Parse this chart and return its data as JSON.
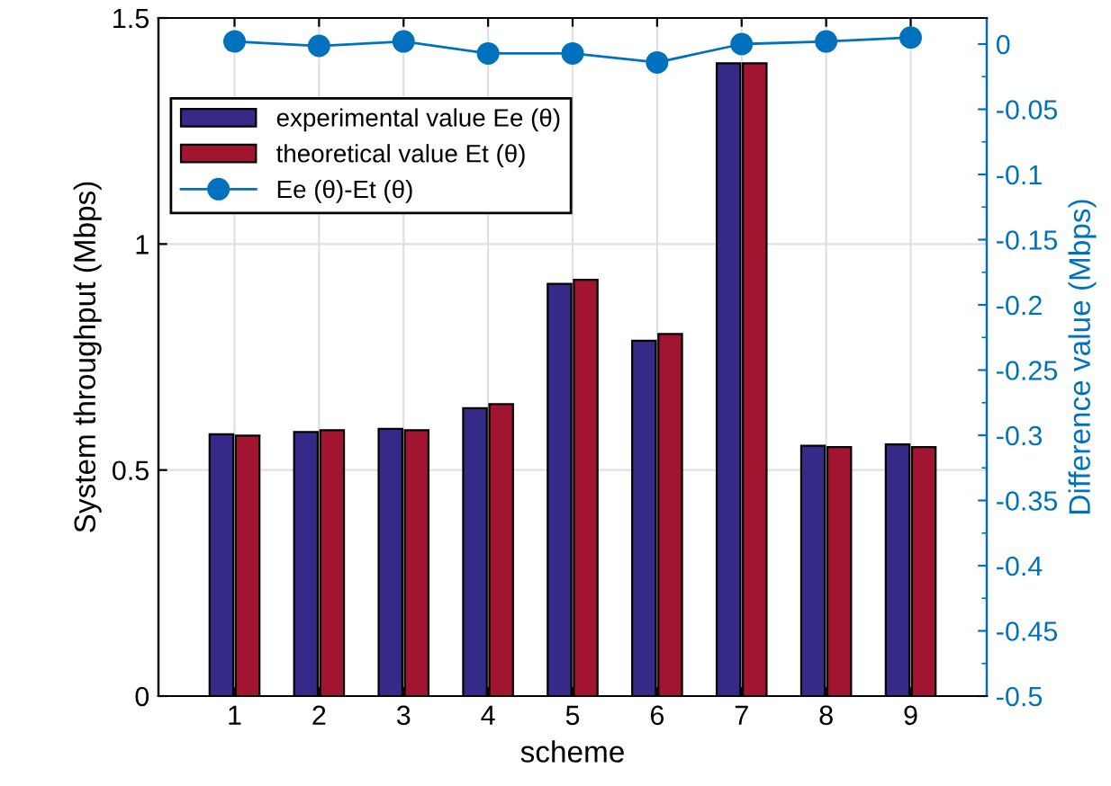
{
  "chart_data": {
    "type": "bar",
    "xlabel": "scheme",
    "ylabel": "System throughput (Mbps)",
    "y2label": "Difference value (Mbps)",
    "categories": [
      "1",
      "2",
      "3",
      "4",
      "5",
      "6",
      "7",
      "8",
      "9"
    ],
    "series": [
      {
        "name": "experimental value Ee (θ)",
        "color": "#352a87",
        "values": [
          0.579,
          0.584,
          0.591,
          0.637,
          0.912,
          0.786,
          1.4,
          0.554,
          0.557
        ]
      },
      {
        "name": "theoretical value Et (θ)",
        "color": "#a21530",
        "values": [
          0.576,
          0.588,
          0.588,
          0.646,
          0.921,
          0.801,
          1.4,
          0.551,
          0.551
        ]
      },
      {
        "name": "Ee (θ)-Et (θ)",
        "type": "line",
        "axis": "y2",
        "color": "#0072bd",
        "marker": "circle",
        "values": [
          0.002,
          -0.0014,
          0.002,
          -0.0072,
          -0.0072,
          -0.0141,
          0.0,
          0.002,
          0.005
        ]
      }
    ],
    "ylim": [
      0,
      1.5
    ],
    "yticks": [
      0,
      0.5,
      1,
      1.5
    ],
    "y2lim": [
      -0.5,
      0.02
    ],
    "y2ticks": [
      0,
      -0.05,
      -0.1,
      -0.15,
      -0.2,
      -0.25,
      -0.3,
      -0.35,
      -0.4,
      -0.45,
      -0.5
    ],
    "grid": true,
    "legend": "top left"
  }
}
